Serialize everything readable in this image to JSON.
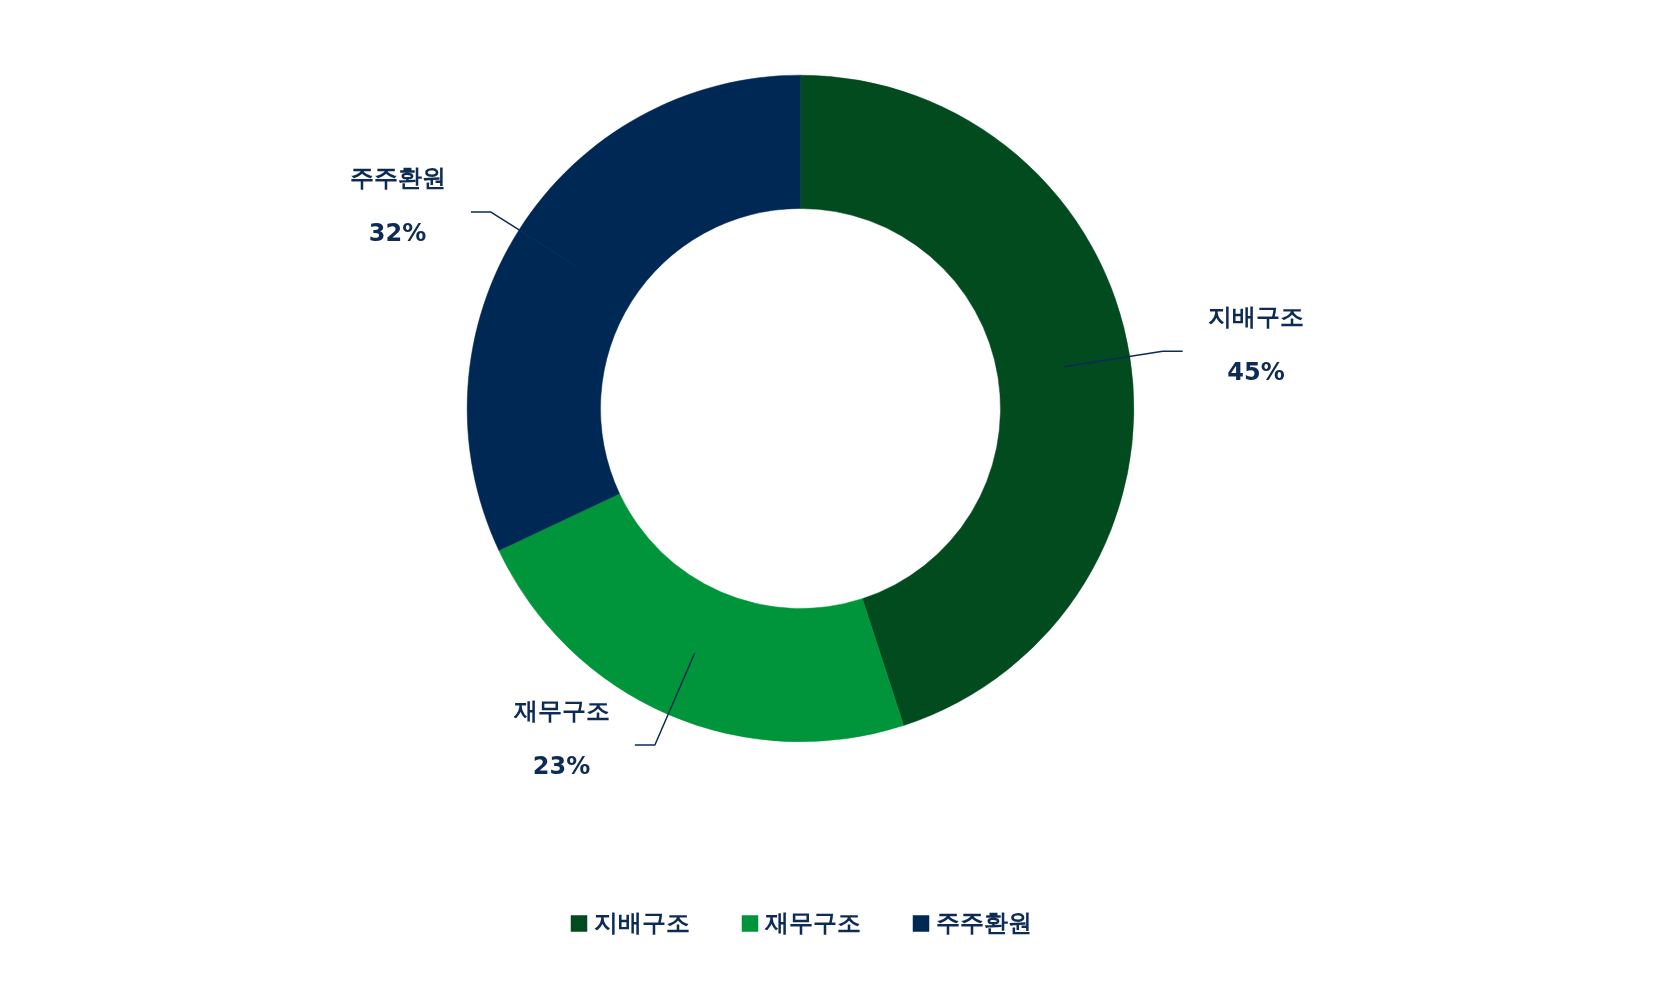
{
  "chart_data": {
    "type": "donut",
    "categories": [
      "지배구조",
      "재무구조",
      "주주환원"
    ],
    "values": [
      45,
      23,
      32
    ],
    "colors": [
      "#024b1f",
      "#00953a",
      "#002855"
    ],
    "value_labels": [
      "45%",
      "23%",
      "32%"
    ],
    "legend": "bottom"
  }
}
